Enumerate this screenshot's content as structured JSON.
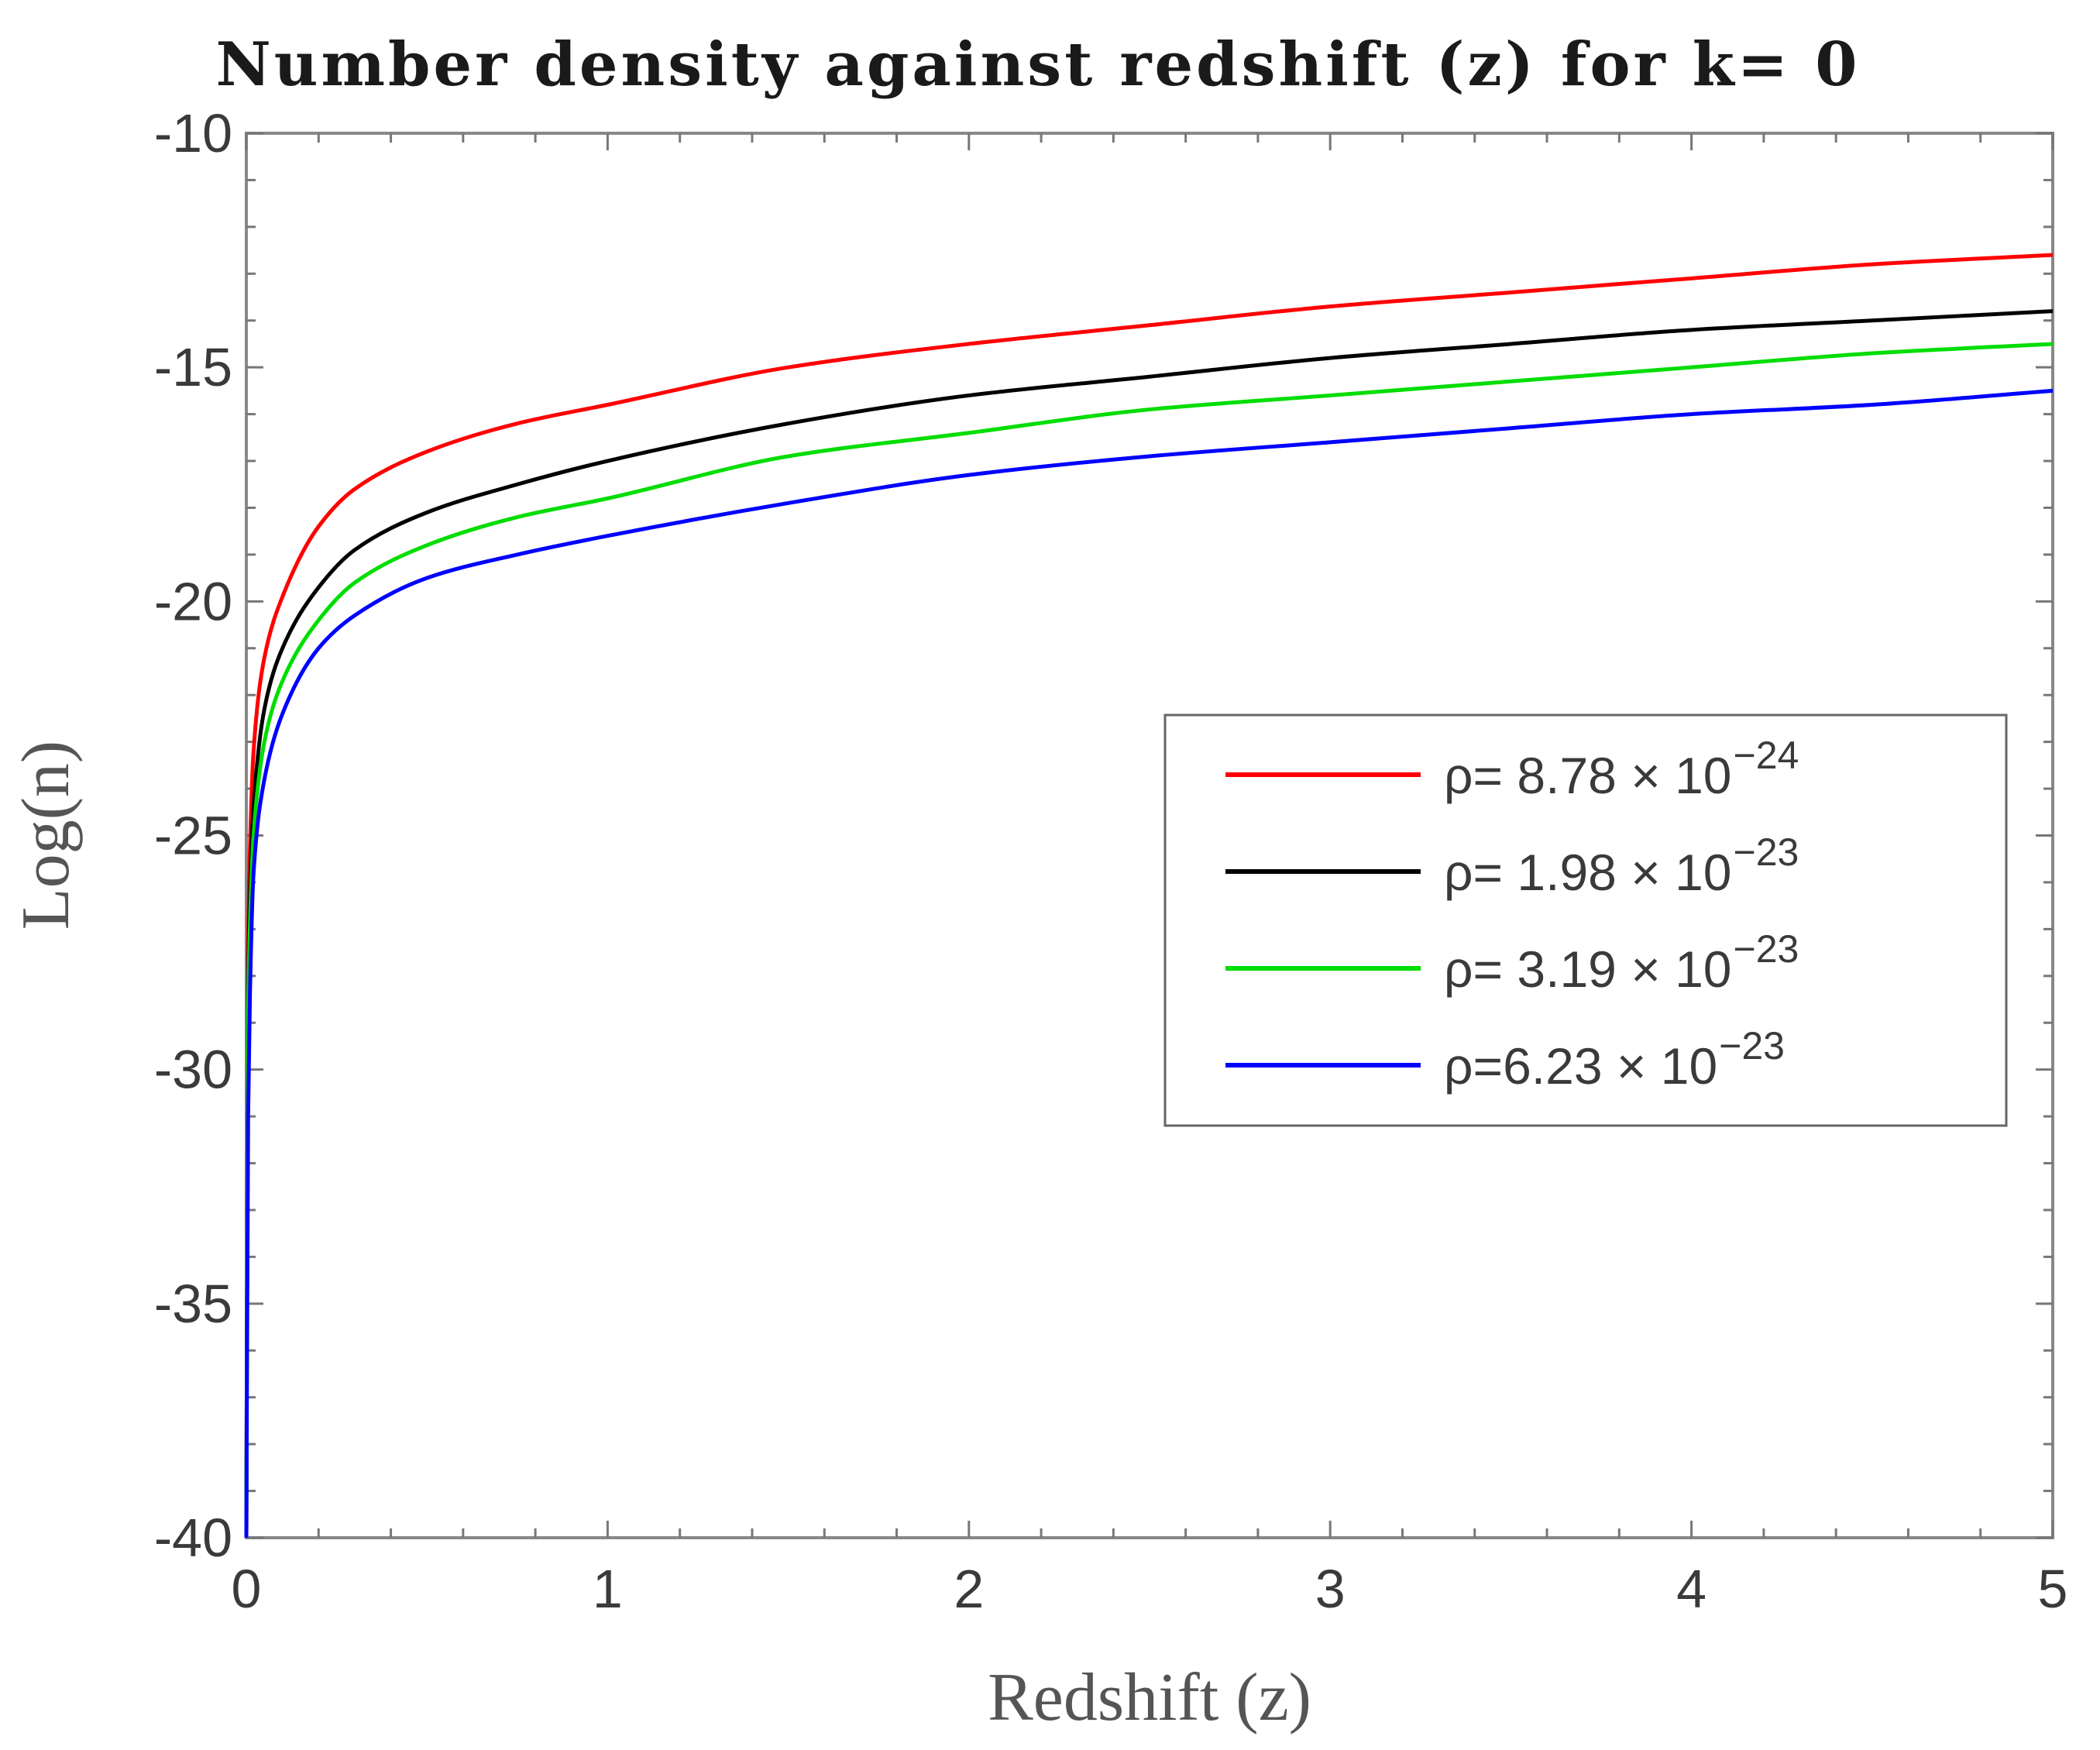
{
  "chart_data": {
    "type": "line",
    "title": "Number density against redshift (z) for k= 0",
    "xlabel": "Redshift (z)",
    "ylabel": "Log(n)",
    "xlim": [
      0,
      5
    ],
    "ylim": [
      -40,
      -10
    ],
    "x_ticks": [
      0,
      1,
      2,
      3,
      4,
      5
    ],
    "y_ticks": [
      -40,
      -35,
      -30,
      -25,
      -20,
      -15,
      -10
    ],
    "grid": false,
    "legend_position": "center-right",
    "x": [
      0.005,
      0.01,
      0.02,
      0.05,
      0.1,
      0.2,
      0.3,
      0.5,
      0.75,
      1,
      1.5,
      2,
      2.5,
      3,
      3.5,
      4,
      4.5,
      5
    ],
    "series": [
      {
        "name": "ρ= 8.78 × 10",
        "name_exponent": "−24",
        "color": "#ff0000",
        "values": [
          -27.4,
          -25.3,
          -23.2,
          -21.2,
          -19.9,
          -18.4,
          -17.6,
          -16.8,
          -16.2,
          -15.8,
          -15.0,
          -14.5,
          -14.1,
          -13.7,
          -13.4,
          -13.1,
          -12.8,
          -12.6
        ]
      },
      {
        "name": "ρ= 1.98 × 10",
        "name_exponent": "−23",
        "color": "#000000",
        "values": [
          -28.2,
          -26.3,
          -24.4,
          -22.3,
          -21.0,
          -19.7,
          -18.9,
          -18.1,
          -17.5,
          -17.0,
          -16.2,
          -15.6,
          -15.2,
          -14.8,
          -14.5,
          -14.2,
          -14.0,
          -13.8
        ]
      },
      {
        "name": "ρ= 3.19 × 10",
        "name_exponent": "−23",
        "color": "#00dd00",
        "values": [
          -28.8,
          -26.9,
          -25.0,
          -23.0,
          -21.7,
          -20.4,
          -19.6,
          -18.8,
          -18.2,
          -17.8,
          -16.9,
          -16.4,
          -15.9,
          -15.6,
          -15.3,
          -15.0,
          -14.7,
          -14.5
        ]
      },
      {
        "name": "ρ=6.23 × 10",
        "name_exponent": "−23",
        "color": "#0000ff",
        "values": [
          -31.0,
          -28.4,
          -25.8,
          -23.8,
          -22.4,
          -21.0,
          -20.3,
          -19.5,
          -19.0,
          -18.6,
          -17.9,
          -17.3,
          -16.9,
          -16.6,
          -16.3,
          -16.0,
          -15.8,
          -15.5
        ]
      }
    ]
  }
}
